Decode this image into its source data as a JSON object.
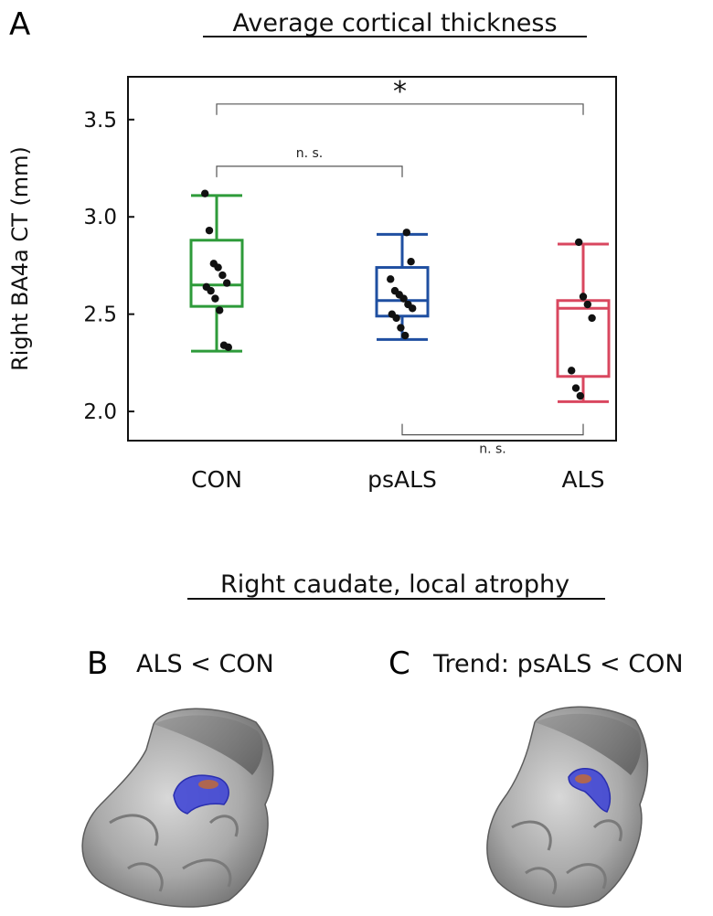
{
  "panel_a": {
    "letter": "A",
    "title": "Average cortical thickness"
  },
  "chart_data": {
    "type": "box",
    "ylabel": "Right BA4a CT (mm)",
    "ylim": [
      1.85,
      3.72
    ],
    "yticks": [
      2.0,
      2.5,
      3.0,
      3.5
    ],
    "ytick_labels": [
      "2.0",
      "2.5",
      "3.0",
      "3.5"
    ],
    "categories": [
      "CON",
      "psALS",
      "ALS"
    ],
    "groups": [
      {
        "name": "CON",
        "color": "#2e9b3a",
        "whisker_low": 2.31,
        "q1": 2.54,
        "median": 2.65,
        "q3": 2.88,
        "whisker_high": 3.11,
        "points": [
          3.12,
          2.93,
          2.76,
          2.74,
          2.7,
          2.66,
          2.64,
          2.62,
          2.58,
          2.52,
          2.34,
          2.33
        ]
      },
      {
        "name": "psALS",
        "color": "#1f4fa1",
        "whisker_low": 2.37,
        "q1": 2.49,
        "median": 2.57,
        "q3": 2.74,
        "whisker_high": 2.91,
        "points": [
          2.92,
          2.77,
          2.68,
          2.62,
          2.6,
          2.58,
          2.55,
          2.53,
          2.5,
          2.48,
          2.43,
          2.39
        ]
      },
      {
        "name": "ALS",
        "color": "#d9475f",
        "whisker_low": 2.05,
        "q1": 2.18,
        "median": 2.53,
        "q3": 2.57,
        "whisker_high": 2.86,
        "points": [
          2.87,
          2.59,
          2.55,
          2.48,
          2.21,
          2.12,
          2.08
        ]
      }
    ],
    "comparisons": [
      {
        "from": "CON",
        "to": "ALS",
        "label": "*",
        "level": 3.58,
        "position": "above"
      },
      {
        "from": "CON",
        "to": "psALS",
        "label": "n. s.",
        "level": 3.26,
        "position": "above"
      },
      {
        "from": "psALS",
        "to": "ALS",
        "label": "n. s.",
        "level": 1.88,
        "position": "below"
      }
    ]
  },
  "panel_bc": {
    "title": "Right caudate, local atrophy"
  },
  "panel_b": {
    "letter": "B",
    "label": "ALS < CON",
    "highlight_color": "#3a3fd6",
    "spot_color": "#c06a3a"
  },
  "panel_c": {
    "letter": "C",
    "label": "Trend: psALS < CON",
    "highlight_color": "#3a3fd6",
    "spot_color": "#c06a3a"
  }
}
